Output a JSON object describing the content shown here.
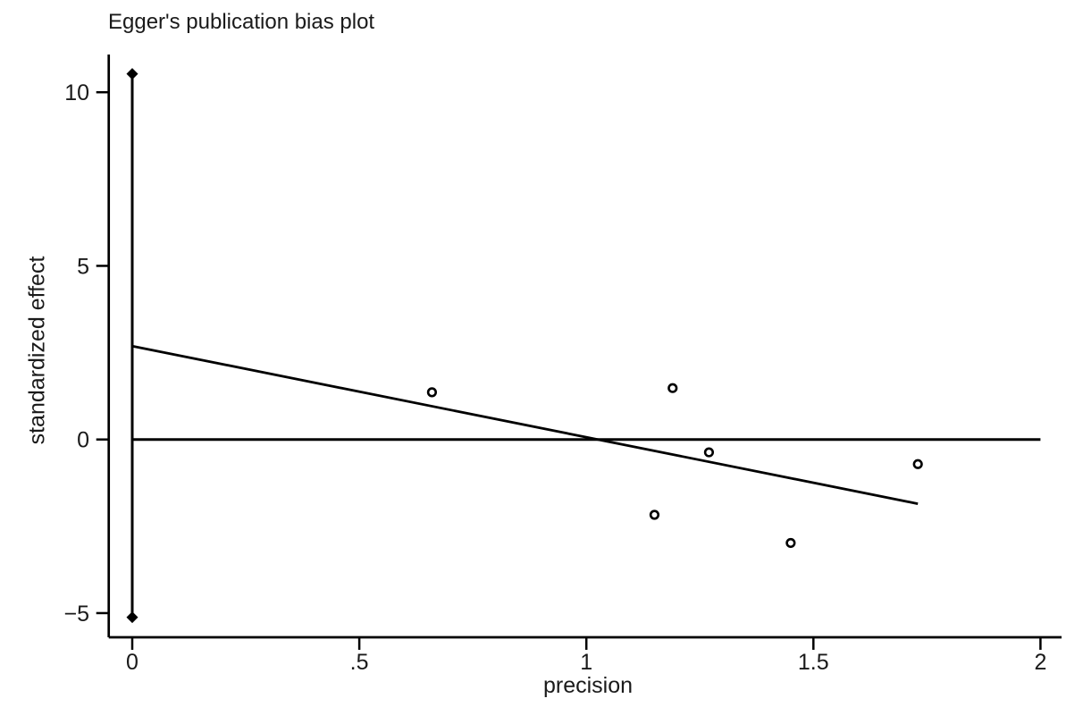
{
  "chart_data": {
    "type": "scatter",
    "title": "Egger's publication bias plot",
    "xlabel": "precision",
    "ylabel": "standardized effect",
    "xlim": [
      0,
      2
    ],
    "ylim": [
      -5.2,
      10.6
    ],
    "grid": false,
    "legend": "none",
    "x_ticks": [
      {
        "value": 0,
        "label": "0"
      },
      {
        "value": 0.5,
        "label": ".5"
      },
      {
        "value": 1,
        "label": "1"
      },
      {
        "value": 1.5,
        "label": "1.5"
      },
      {
        "value": 2,
        "label": "2"
      }
    ],
    "y_ticks": [
      {
        "value": 10,
        "label": "10"
      },
      {
        "value": 5,
        "label": "5"
      },
      {
        "value": 0,
        "label": "0"
      },
      {
        "value": -5,
        "label": "−5"
      }
    ],
    "points": [
      {
        "x": 0.66,
        "y": 1.36
      },
      {
        "x": 1.19,
        "y": 1.48
      },
      {
        "x": 1.27,
        "y": -0.37
      },
      {
        "x": 1.15,
        "y": -2.17
      },
      {
        "x": 1.45,
        "y": -2.98
      },
      {
        "x": 1.73,
        "y": -0.71
      }
    ],
    "regression_line": {
      "x1": 0,
      "y1": 2.69,
      "x2": 1.73,
      "y2": -1.85
    },
    "zero_line": {
      "y": 0,
      "x1": 0,
      "x2": 2.0
    },
    "intercept_ci_line": {
      "x": 0,
      "y1": -5.12,
      "y2": 10.53,
      "marker": "diamond"
    },
    "colors": {
      "line": "#000000",
      "marker_stroke": "#000000",
      "marker_fill": "#ffffff",
      "text": "#1a1a1a",
      "background": "#ffffff"
    }
  }
}
